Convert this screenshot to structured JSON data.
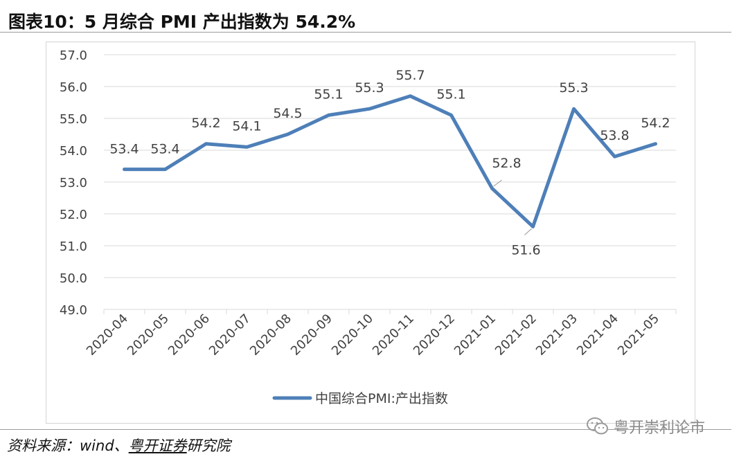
{
  "figure": {
    "title": "图表10：5 月综合 PMI 产出指数为 54.2%",
    "source_prefix": "资料来源：wind、",
    "source_org": "粤开证券",
    "source_suffix": "研究院",
    "watermark": "粤开崇利论市",
    "colors": {
      "series": "#4e7fb8",
      "grid": "#d9d9d9",
      "text": "#404040"
    }
  },
  "chart_data": {
    "type": "line",
    "title": "",
    "xlabel": "",
    "ylabel": "",
    "categories": [
      "2020-04",
      "2020-05",
      "2020-06",
      "2020-07",
      "2020-08",
      "2020-09",
      "2020-10",
      "2020-11",
      "2020-12",
      "2021-01",
      "2021-02",
      "2021-03",
      "2021-04",
      "2021-05"
    ],
    "series": [
      {
        "name": "中国综合PMI:产出指数",
        "values": [
          53.4,
          53.4,
          54.2,
          54.1,
          54.5,
          55.1,
          55.3,
          55.7,
          55.1,
          52.8,
          51.6,
          55.3,
          53.8,
          54.2
        ]
      }
    ],
    "data_labels": [
      "53.4",
      "53.4",
      "54.2",
      "54.1",
      "54.5",
      "55.1",
      "55.3",
      "55.7",
      "55.1",
      "52.8",
      "51.6",
      "55.3",
      "53.8",
      "54.2"
    ],
    "ylim": [
      49.0,
      57.0
    ],
    "yticks": [
      "49.0",
      "50.0",
      "51.0",
      "52.0",
      "53.0",
      "54.0",
      "55.0",
      "56.0",
      "57.0"
    ],
    "grid": true,
    "legend_position": "bottom-center"
  }
}
